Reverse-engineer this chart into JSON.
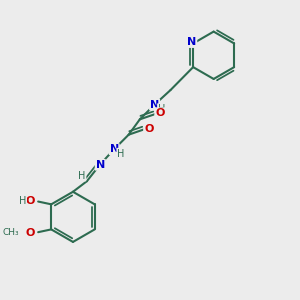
{
  "background_color": "#ececec",
  "bond_color": "#2d6b50",
  "nitrogen_color": "#0000cc",
  "oxygen_color": "#cc0000",
  "linewidth": 1.5,
  "figsize": [
    3.0,
    3.0
  ],
  "dpi": 100,
  "xlim": [
    0.0,
    1.0
  ],
  "ylim": [
    0.0,
    1.0
  ]
}
